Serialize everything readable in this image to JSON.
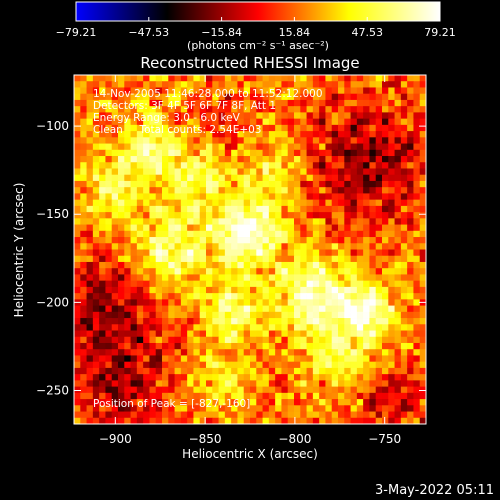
{
  "chart_data": {
    "type": "heatmap",
    "title": "Reconstructed RHESSI Image",
    "xlabel": "Heliocentric X (arcsec)",
    "ylabel": "Heliocentric Y (arcsec)",
    "xlim": [
      -923,
      -727
    ],
    "ylim": [
      -269,
      -71
    ],
    "x_ticks": [
      -900,
      -850,
      -800,
      -750
    ],
    "y_ticks": [
      -100,
      -150,
      -200,
      -250
    ],
    "x_tick_labels": [
      "−900",
      "−850",
      "−800",
      "−750"
    ],
    "y_tick_labels": [
      "−100",
      "−150",
      "−200",
      "−250"
    ],
    "colorbar": {
      "min": -79.21,
      "max": 79.21,
      "tick_values": [
        -79.21,
        -47.53,
        -15.84,
        15.84,
        47.53,
        79.21
      ],
      "tick_labels": [
        "−79.21",
        "−47.53",
        "−15.84",
        "15.84",
        "47.53",
        "79.21"
      ],
      "unit_label": "(photons cm⁻² s⁻¹ asec⁻²)",
      "colors": [
        "#0000ff",
        "#000000",
        "#ff0000",
        "#ffff00",
        "#ffffff"
      ]
    },
    "annotations": {
      "time_range": "14-Nov-2005 11:46:28.000 to 11:52:12.000",
      "detectors": "Detectors: 3F 4F 5F 6F 7F 8F, Att 1",
      "energy_range": "Energy Range: 3.0 - 6.0 keV",
      "clean_counts": "Clean     Total counts: 2.54E+03",
      "peak_position": "Position of Peak = [-827,-160]"
    },
    "peak": {
      "x": -827,
      "y": -160
    }
  },
  "footer": {
    "date_stamp": "3-May-2022 05:11"
  }
}
